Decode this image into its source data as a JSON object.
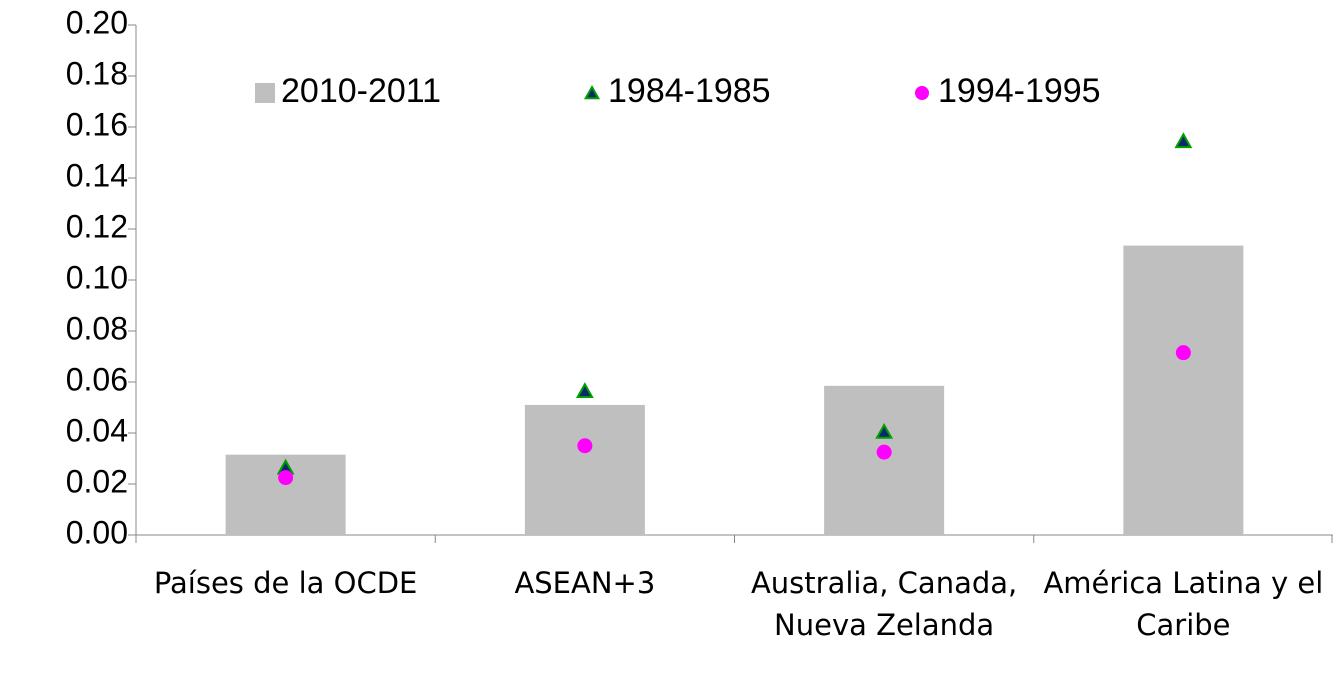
{
  "chart_data": {
    "type": "bar",
    "categories": [
      "Países de la OCDE",
      "ASEAN+3",
      "Australia, Canada, Nueva Zelanda",
      "América Latina y el Caribe"
    ],
    "series": [
      {
        "name": "2010-2011",
        "color": "#bfbfbf",
        "marker": "bar",
        "values": [
          0.0315,
          0.051,
          0.0585,
          0.1135
        ]
      },
      {
        "name": "1984-1985",
        "color": "#0b2a6b",
        "marker": "triangle",
        "values": [
          0.026,
          0.056,
          0.04,
          0.154
        ]
      },
      {
        "name": "1994-1995",
        "color": "#ff00ff",
        "marker": "circle",
        "values": [
          0.0225,
          0.035,
          0.0325,
          0.0715
        ]
      }
    ],
    "ylim": [
      0,
      0.2
    ],
    "yticks": [
      {
        "value": 0,
        "label": "0.00"
      },
      {
        "value": 0.02,
        "label": "0.02"
      },
      {
        "value": 0.04,
        "label": "0.04"
      },
      {
        "value": 0.06,
        "label": "0.06"
      },
      {
        "value": 0.08,
        "label": "0.08"
      },
      {
        "value": 0.1,
        "label": "0.10"
      },
      {
        "value": 0.12,
        "label": "0.12"
      },
      {
        "value": 0.14,
        "label": "0.14"
      },
      {
        "value": 0.16,
        "label": "0.16"
      },
      {
        "value": 0.18,
        "label": "0.18"
      },
      {
        "value": 0.2,
        "label": "0.20"
      }
    ],
    "grid": false,
    "legend": "top"
  }
}
